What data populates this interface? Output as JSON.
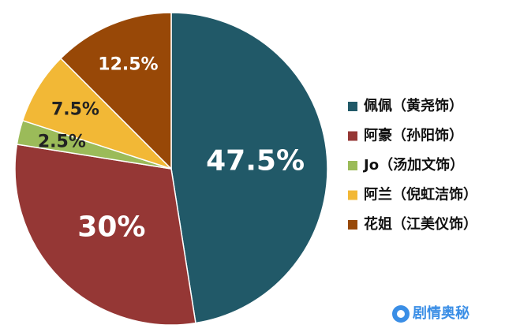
{
  "chart_data": {
    "type": "pie",
    "categories": [
      "佩佩（黄尧饰）",
      "阿豪（孙阳饰）",
      "Jo（汤加文饰）",
      "阿兰（倪虹洁饰）",
      "花姐（江美仪饰）"
    ],
    "values": [
      47.5,
      30,
      2.5,
      7.5,
      12.5
    ],
    "value_labels": [
      "47.5%",
      "30%",
      "2.5%",
      "7.5%",
      "12.5%"
    ],
    "colors": [
      "#215968",
      "#953735",
      "#9bbb59",
      "#f2b836",
      "#984807"
    ]
  },
  "watermark": "剧情奥秘"
}
